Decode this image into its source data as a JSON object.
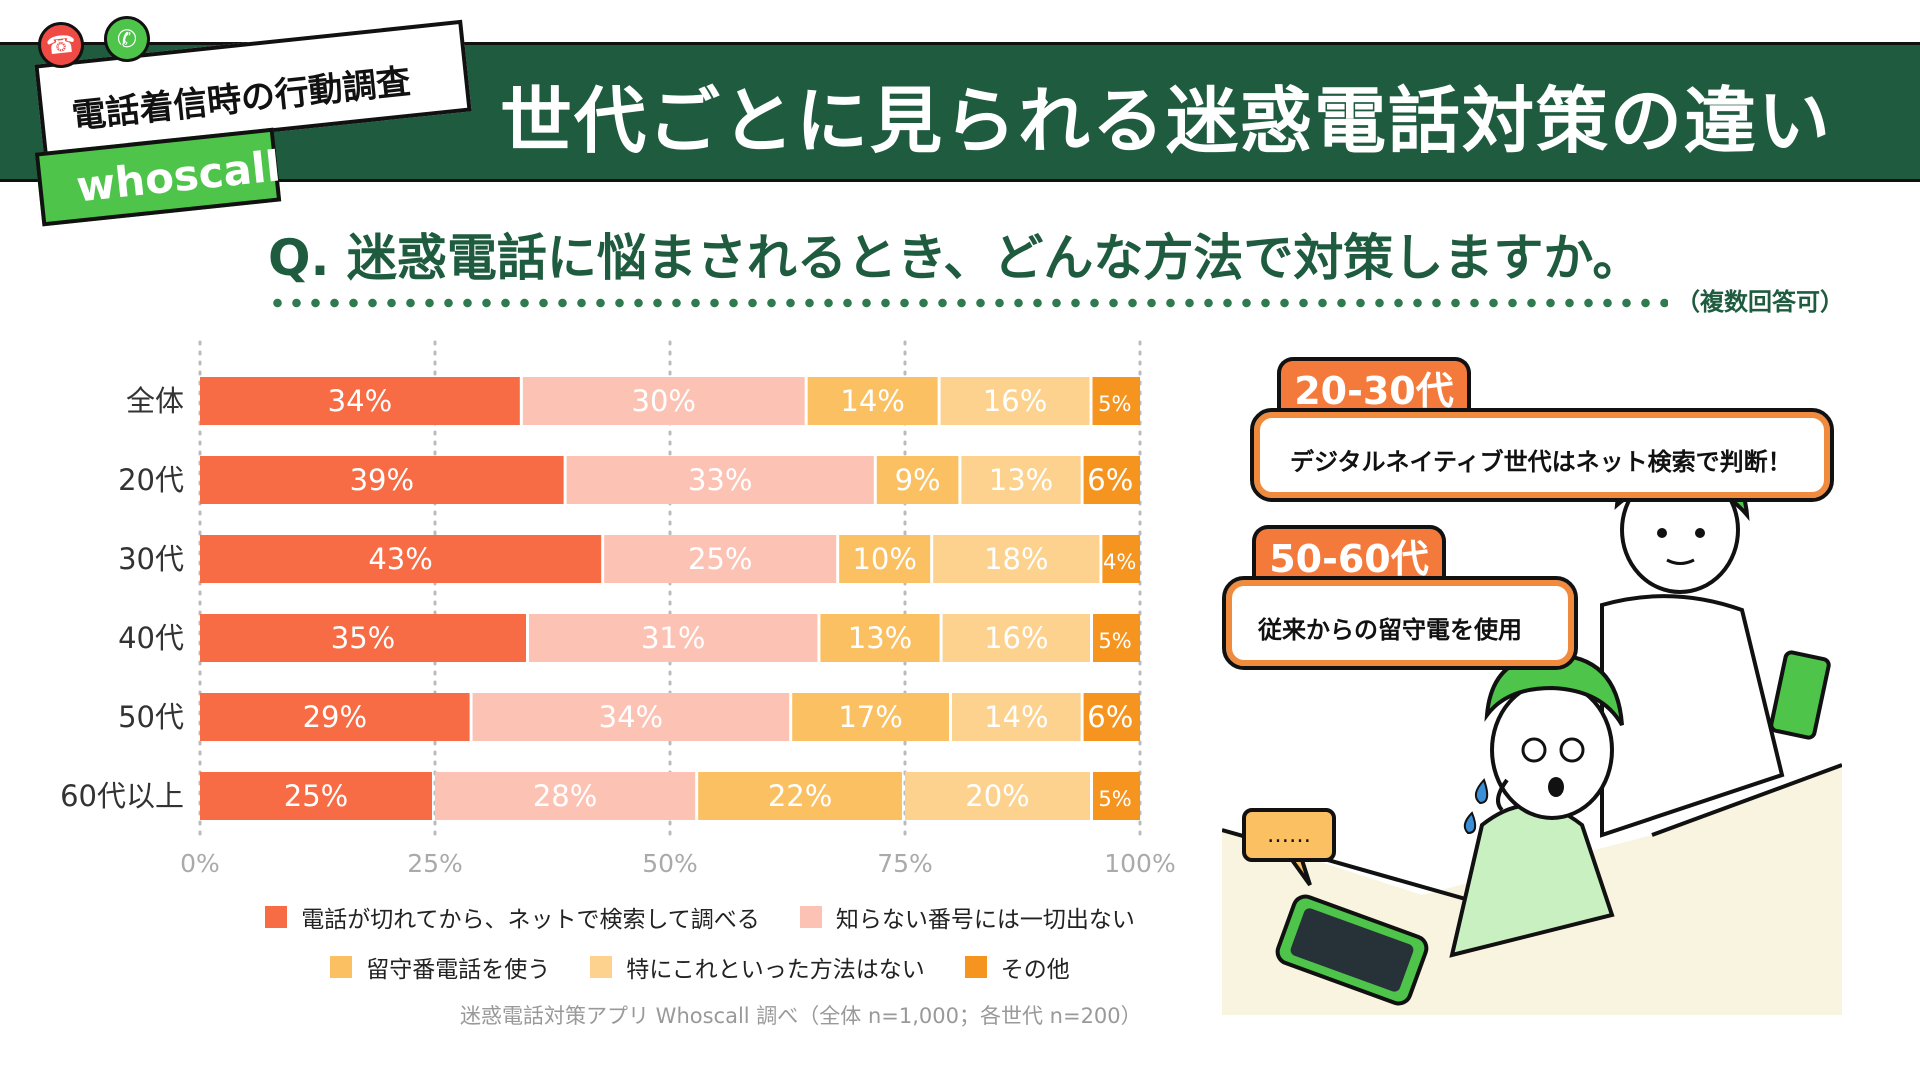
{
  "header": {
    "survey_title": "電話着信時の行動調査",
    "brand": "whoscall",
    "main_title": "世代ごとに見られる迷惑電話対策の違い"
  },
  "question": {
    "text": "Q. 迷惑電話に悩まされるとき、どんな方法で対策しますか。",
    "note": "（複数回答可）"
  },
  "source": "迷惑電話対策アプリ Whoscall 調べ（全体 n=1,000；各世代 n=200）",
  "colors": {
    "banner": "#1e5b3f",
    "brand_green": "#4ec44a",
    "accent_orange": "#f47a3c"
  },
  "chart_data": {
    "type": "bar",
    "orientation": "horizontal",
    "stacked": true,
    "categories": [
      "全体",
      "20代",
      "30代",
      "40代",
      "50代",
      "60代以上"
    ],
    "series": [
      {
        "name": "電話が切れてから、ネットで検索して調べる",
        "color": "#f86c45",
        "values": [
          34,
          39,
          43,
          35,
          29,
          25
        ]
      },
      {
        "name": "知らない番号には一切出ない",
        "color": "#fcc3b4",
        "values": [
          30,
          33,
          25,
          31,
          34,
          28
        ]
      },
      {
        "name": "留守番電話を使う",
        "color": "#fbc062",
        "values": [
          14,
          9,
          10,
          13,
          17,
          22
        ]
      },
      {
        "name": "特にこれといった方法はない",
        "color": "#fcd28e",
        "values": [
          16,
          13,
          18,
          16,
          14,
          20
        ]
      },
      {
        "name": "その他",
        "color": "#f5951f",
        "values": [
          5,
          6,
          4,
          5,
          6,
          5
        ]
      }
    ],
    "value_labels": [
      [
        "34%",
        "30%",
        "14%",
        "16%",
        "5%"
      ],
      [
        "39%",
        "33%",
        "9%",
        "13%",
        "6%"
      ],
      [
        "43%",
        "25%",
        "10%",
        "18%",
        "4%"
      ],
      [
        "35%",
        "31%",
        "13%",
        "16%",
        "5%"
      ],
      [
        "29%",
        "34%",
        "17%",
        "14%",
        "6%"
      ],
      [
        "25%",
        "28%",
        "22%",
        "20%",
        "5%"
      ]
    ],
    "x_ticks": [
      "0%",
      "25%",
      "50%",
      "75%",
      "100%"
    ],
    "xlim": [
      0,
      100
    ],
    "grid": true,
    "legend_position": "bottom"
  },
  "illustration": {
    "young_age": "20-30代",
    "young_text": "デジタルネイティブ世代はネット検索で判断！",
    "old_age": "50-60代",
    "old_text": "従来からの留守電を使用",
    "ellipsis": "……"
  }
}
